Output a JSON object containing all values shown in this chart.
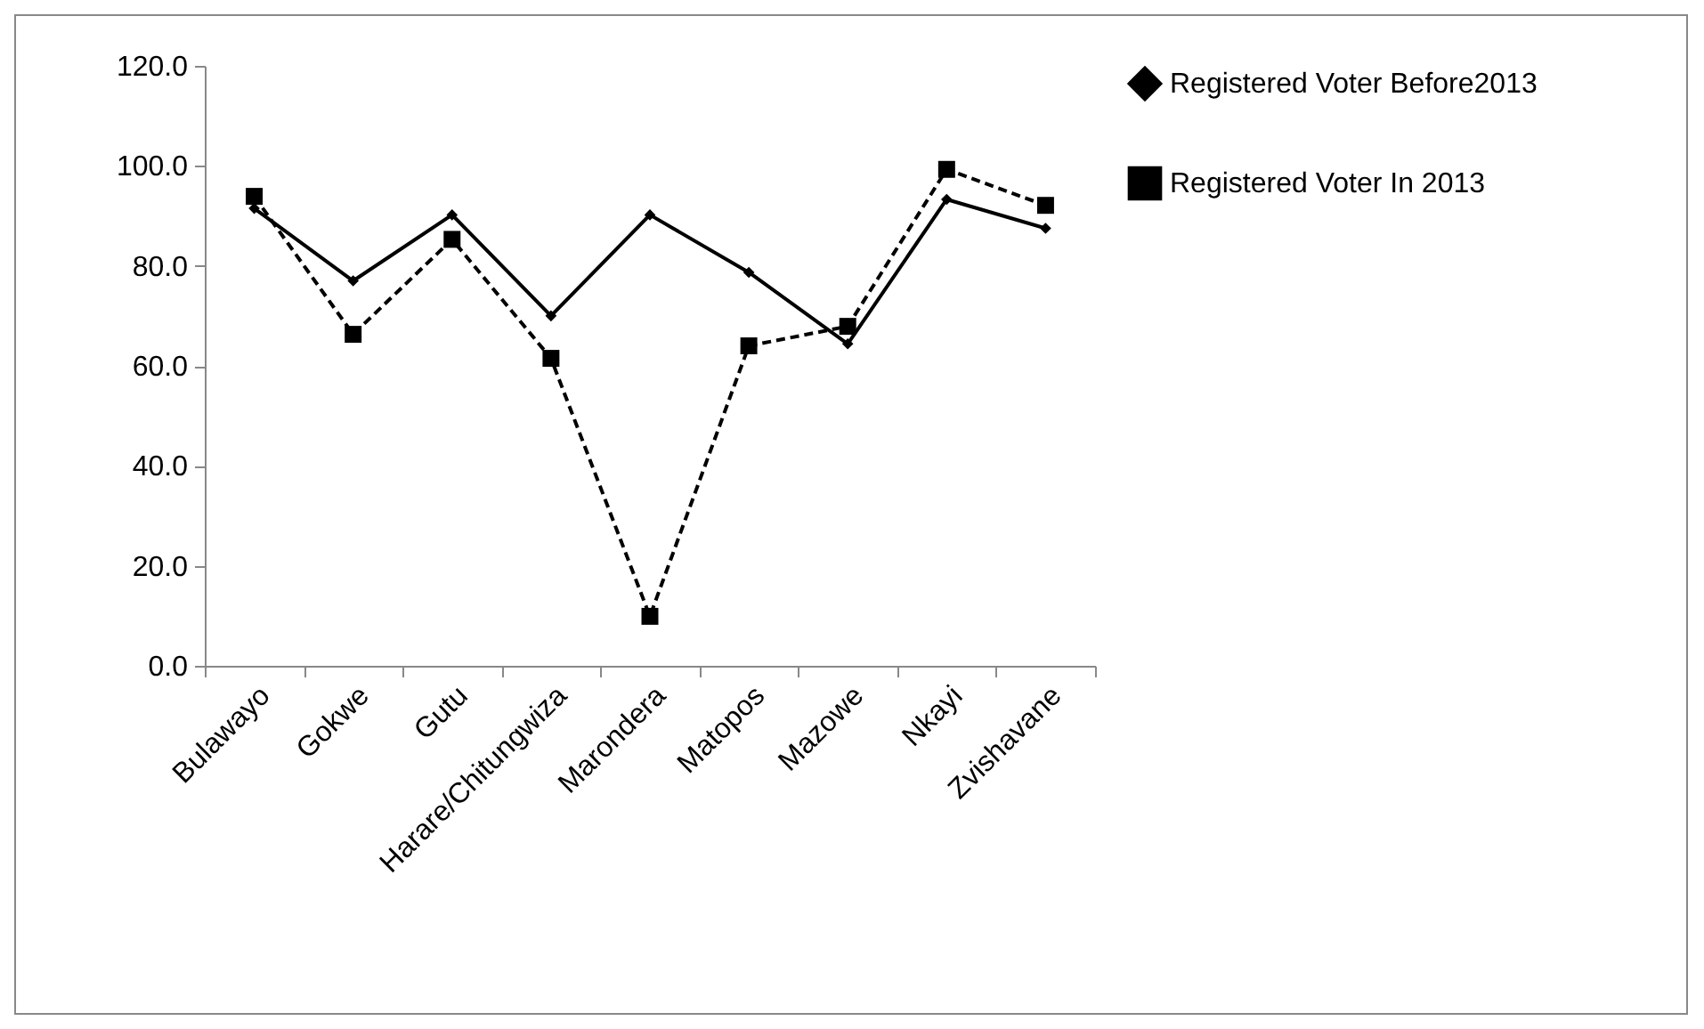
{
  "chart_data": {
    "type": "line",
    "categories": [
      "Bulawayo",
      "Gokwe",
      "Gutu",
      "Harare/Chitungwiza",
      "Marondera",
      "Matopos",
      "Mazowe",
      "Nkayi",
      "Zvishavane"
    ],
    "series": [
      {
        "name": "Registered Voter Before2013",
        "color": "#000000",
        "marker": "diamond",
        "line_style": "solid",
        "values": [
          91.5,
          77.0,
          90.2,
          70.0,
          90.2,
          78.7,
          64.4,
          93.3,
          87.5
        ]
      },
      {
        "name": "Registered Voter In 2013",
        "color": "#000000",
        "marker": "square",
        "line_style": "dashed",
        "values": [
          93.9,
          66.3,
          85.3,
          61.5,
          9.9,
          64.0,
          67.9,
          99.3,
          92.1
        ]
      }
    ],
    "ylim": [
      0,
      120
    ],
    "yticks": [
      {
        "value": 0,
        "label": "0.0"
      },
      {
        "value": 20,
        "label": "20.0"
      },
      {
        "value": 40,
        "label": "40.0"
      },
      {
        "value": 60,
        "label": "60.0"
      },
      {
        "value": 80,
        "label": "80.0"
      },
      {
        "value": 100,
        "label": "100.0"
      },
      {
        "value": 120,
        "label": "120.0"
      }
    ],
    "grid": false,
    "legend": "right"
  }
}
